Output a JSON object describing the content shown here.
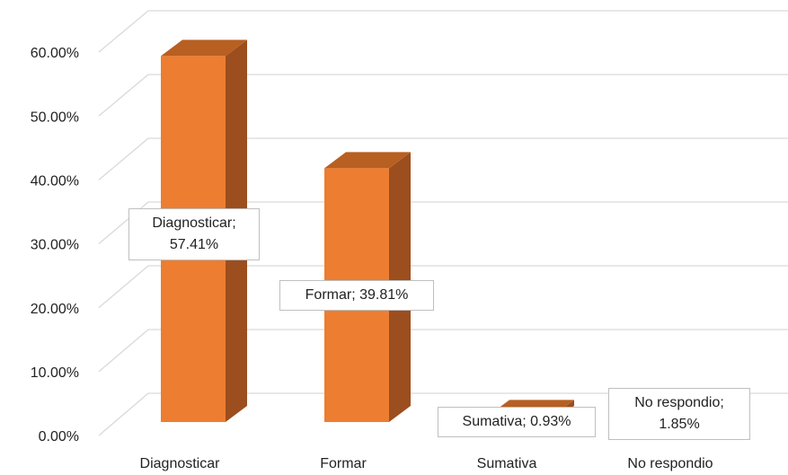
{
  "chart_data": {
    "type": "bar3d",
    "categories": [
      "Diagnosticar",
      "Formar",
      "Sumativa",
      "No respondio"
    ],
    "values": [
      57.41,
      39.81,
      0.93,
      1.85
    ],
    "value_labels": [
      "Diagnosticar; 57.41%",
      "Formar; 39.81%",
      "Sumativa; 0.93%",
      "No respondio; 1.85%"
    ],
    "color": "#ED7D31",
    "ylim": [
      0,
      60
    ],
    "yticks": [
      {
        "value": 0,
        "label": "0.00%"
      },
      {
        "value": 10,
        "label": "10.00%"
      },
      {
        "value": 20,
        "label": "20.00%"
      },
      {
        "value": 30,
        "label": "30.00%"
      },
      {
        "value": 40,
        "label": "40.00%"
      },
      {
        "value": 50,
        "label": "50.00%"
      },
      {
        "value": 60,
        "label": "60.00%"
      }
    ],
    "grid": true
  }
}
